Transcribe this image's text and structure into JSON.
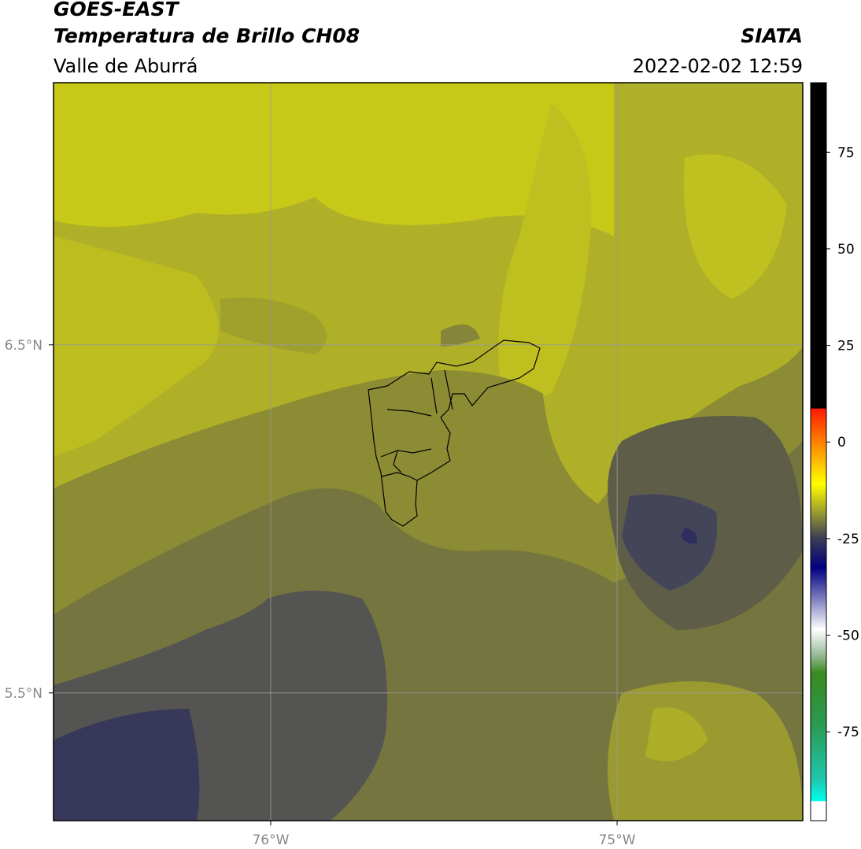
{
  "chart_data": {
    "type": "map",
    "title": "GOES-EAST",
    "subtitle": "Temperatura de Brillo CH08",
    "region": "Valle de Aburrá",
    "source": "SIATA",
    "timestamp": "2022-02-02 12:59",
    "xlim": [
      -76.627,
      -74.464
    ],
    "ylim": [
      5.133,
      7.253
    ],
    "xticks": [
      {
        "value": -76,
        "label": "76°W"
      },
      {
        "value": -75,
        "label": "75°W"
      }
    ],
    "yticks": [
      {
        "value": 6.5,
        "label": "6.5°N"
      },
      {
        "value": 5.5,
        "label": "5.5°N"
      }
    ],
    "grid": true,
    "colorbar": {
      "lim": [
        -98,
        93
      ],
      "ticks": [
        75,
        50,
        25,
        0,
        -25,
        -50,
        -75
      ]
    }
  }
}
